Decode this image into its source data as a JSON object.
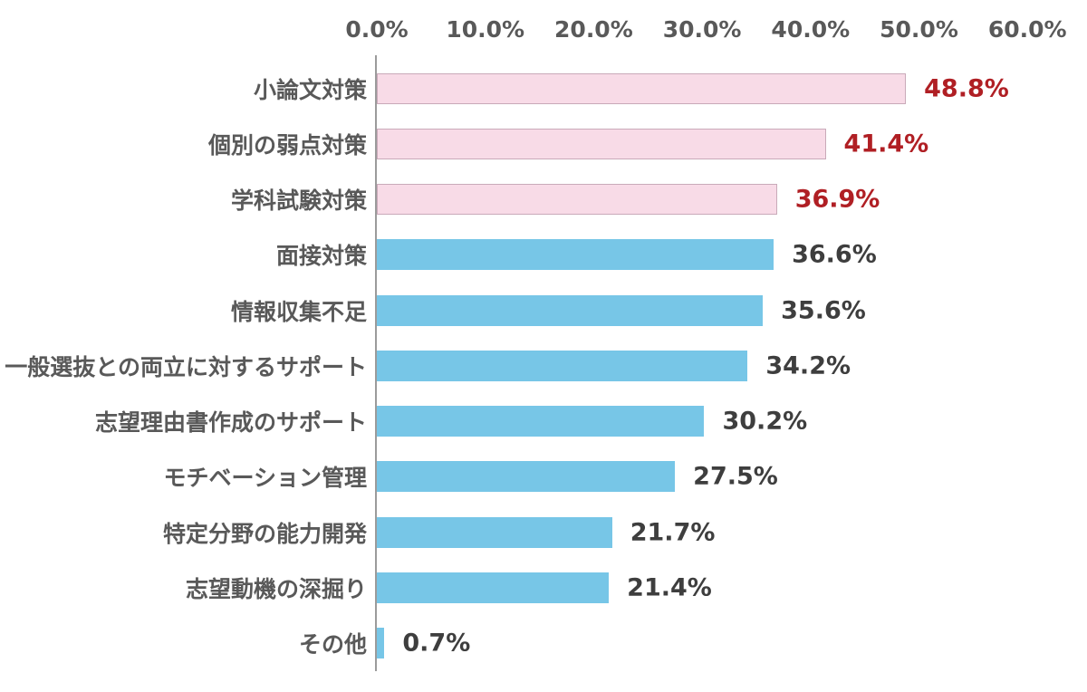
{
  "chart_data": {
    "type": "bar",
    "orientation": "horizontal",
    "title": "",
    "xlabel": "",
    "ylabel": "",
    "xlim": [
      0,
      60
    ],
    "grid": false,
    "legend": "none",
    "x_ticks": [
      "0.0%",
      "10.0%",
      "20.0%",
      "30.0%",
      "40.0%",
      "50.0%",
      "60.0%"
    ],
    "categories": [
      "小論文対策",
      "個別の弱点対策",
      "学科試験対策",
      "面接対策",
      "情報収集不足",
      "一般選抜との両立に対するサポート",
      "志望理由書作成のサポート",
      "モチベーション管理",
      "特定分野の能力開発",
      "志望動機の深掘り",
      "その他"
    ],
    "values": [
      48.8,
      41.4,
      36.9,
      36.6,
      35.6,
      34.2,
      30.2,
      27.5,
      21.7,
      21.4,
      0.7
    ],
    "value_labels": [
      "48.8%",
      "41.4%",
      "36.9%",
      "36.6%",
      "35.6%",
      "34.2%",
      "30.2%",
      "27.5%",
      "21.7%",
      "21.4%",
      "0.7%"
    ],
    "highlighted_count": 3,
    "colors": {
      "highlight_bar_fill": "#f8dbe7",
      "highlight_bar_border": "#c9aab9",
      "bar_fill": "#77c6e7",
      "highlight_value_text": "#b01f24",
      "value_text": "#3e3e3e",
      "category_text": "#595959",
      "tick_text": "#595959",
      "axis_line": "#9b9b9b"
    }
  }
}
